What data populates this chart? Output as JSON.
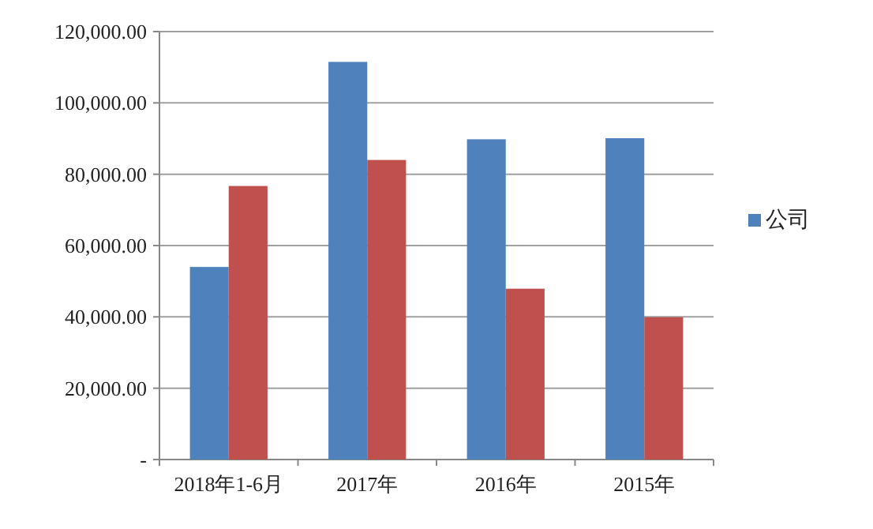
{
  "chart_data": {
    "type": "bar",
    "categories": [
      "2018年1-6月",
      "2017年",
      "2016年",
      "2015年"
    ],
    "series": [
      {
        "name": "公司",
        "color": "#4f81bd",
        "values": [
          54000,
          111500,
          89800,
          90100
        ]
      },
      {
        "color": "#c0504d",
        "values": [
          76700,
          84000,
          47900,
          39900
        ]
      }
    ],
    "ylim": [
      0,
      120000
    ],
    "yticks": [
      {
        "value": 0,
        "label": "-"
      },
      {
        "value": 20000,
        "label": "20,000.00"
      },
      {
        "value": 40000,
        "label": "40,000.00"
      },
      {
        "value": 60000,
        "label": "60,000.00"
      },
      {
        "value": 80000,
        "label": "80,000.00"
      },
      {
        "value": 100000,
        "label": "100,000.00"
      },
      {
        "value": 120000,
        "label": "120,000.00"
      }
    ],
    "grid": "y",
    "legend": "right"
  }
}
